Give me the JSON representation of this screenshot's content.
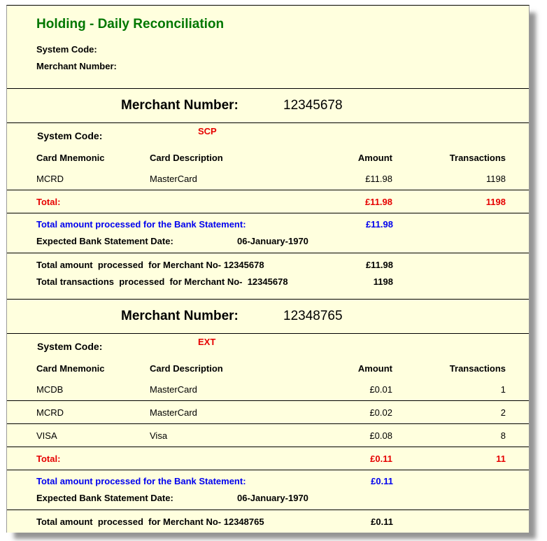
{
  "report": {
    "title": "Holding - Daily Reconciliation",
    "labels": {
      "system_code": "System Code:",
      "merchant_number": "Merchant Number:",
      "total": "Total:",
      "bank_statement_total": "Total amount processed for the Bank Statement:",
      "expected_date": "Expected Bank Statement Date:"
    },
    "table_headers": [
      "Card Mnemonic",
      "Card Description",
      "Amount",
      "Transactions"
    ],
    "sections": [
      {
        "merchant_number": "12345678",
        "system_code": "SCP",
        "rows": [
          {
            "mnemonic": "MCRD",
            "description": "MasterCard",
            "amount": "£11.98",
            "transactions": "1198"
          }
        ],
        "total": {
          "amount": "£11.98",
          "transactions": "1198"
        },
        "bank_statement_amount": "£11.98",
        "expected_date": "06-January-1970",
        "summary": [
          {
            "label": "Total amount  processed  for Merchant No- 12345678",
            "value": "£11.98"
          },
          {
            "label": "Total transactions  processed  for Merchant No-  12345678",
            "value": "1198"
          }
        ]
      },
      {
        "merchant_number": "12348765",
        "system_code": "EXT",
        "rows": [
          {
            "mnemonic": "MCDB",
            "description": "MasterCard",
            "amount": "£0.01",
            "transactions": "1"
          },
          {
            "mnemonic": "MCRD",
            "description": "MasterCard",
            "amount": "£0.02",
            "transactions": "2"
          },
          {
            "mnemonic": "VISA",
            "description": "Visa",
            "amount": "£0.08",
            "transactions": "8"
          }
        ],
        "total": {
          "amount": "£0.11",
          "transactions": "11"
        },
        "bank_statement_amount": "£0.11",
        "expected_date": "06-January-1970",
        "summary": [
          {
            "label": "Total amount  processed  for Merchant No- 12348765",
            "value": "£0.11"
          }
        ]
      }
    ]
  }
}
